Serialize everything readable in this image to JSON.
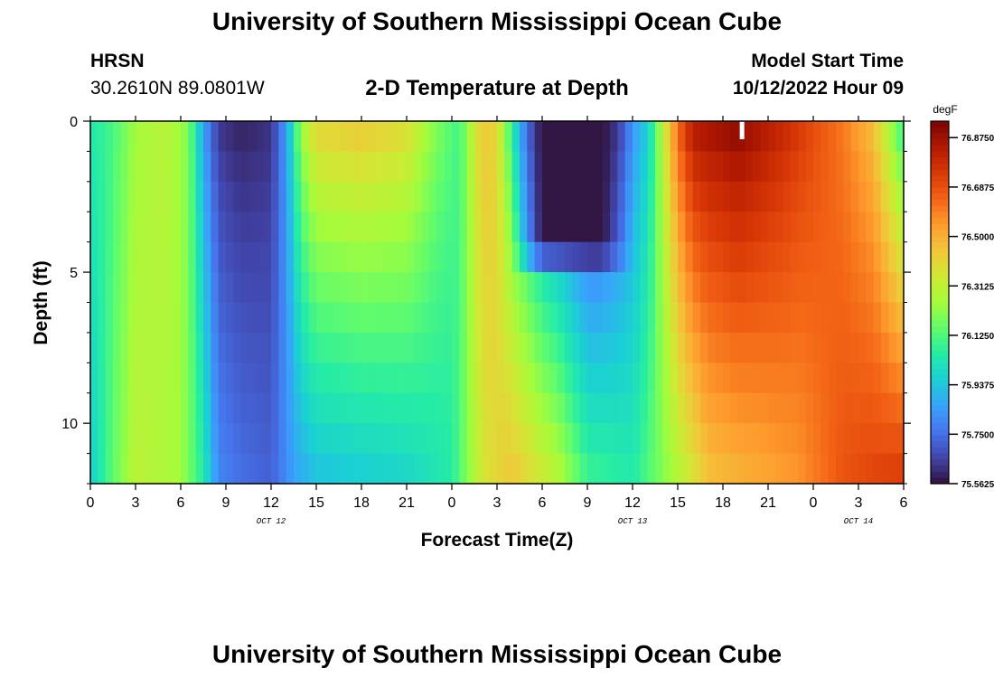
{
  "header": {
    "title": "University of Southern Mississippi Ocean Cube",
    "station": "HRSN",
    "coords": "30.2610N  89.0801W",
    "subtitle": "2-D Temperature at Depth",
    "model_start_label": "Model Start Time",
    "model_start_value": "10/12/2022 Hour 09"
  },
  "footer": {
    "title": "University of Southern Mississippi Ocean Cube"
  },
  "colors": {
    "colormap": [
      "#30123b",
      "#4145ab",
      "#4675ed",
      "#39a2fc",
      "#1bcfd4",
      "#24eca6",
      "#61fc6c",
      "#a4fc3b",
      "#d1e834",
      "#f3c63a",
      "#fe9b2d",
      "#f36315",
      "#d93806",
      "#b11901",
      "#7a0403"
    ]
  },
  "chart_data": {
    "type": "heatmap",
    "xlabel": "Forecast Time(Z)",
    "ylabel": "Depth (ft)",
    "x_tick_labels": [
      "0",
      "3",
      "6",
      "9",
      "12",
      "15",
      "18",
      "21",
      "0",
      "3",
      "6",
      "9",
      "12",
      "15",
      "18",
      "21",
      "0",
      "3",
      "6"
    ],
    "day_labels": [
      {
        "label": "OCT 12",
        "at_hour": 12
      },
      {
        "label": "OCT 13",
        "at_hour": 36
      },
      {
        "label": "OCT 14",
        "at_hour": 51
      }
    ],
    "xlim": [
      0,
      54
    ],
    "ylim": [
      0,
      12
    ],
    "y_axis_inverted": true,
    "y_tick_labels": [
      "0",
      "5",
      "10"
    ],
    "y_tick_values": [
      0,
      5,
      10
    ],
    "colorbar": {
      "unit": "degF",
      "min": 75.5625,
      "max": 76.9375,
      "tick_labels": [
        "76.8750",
        "76.6875",
        "76.5000",
        "76.3125",
        "76.1250",
        "75.9375",
        "75.7500",
        "75.5625"
      ],
      "tick_values": [
        76.875,
        76.6875,
        76.5,
        76.3125,
        76.125,
        75.9375,
        75.75,
        75.5625
      ]
    },
    "cells": {
      "x_step_hours": 0.5,
      "depth_levels": 12
    },
    "surface_profile_degF": [
      {
        "hour": 0,
        "value": 76.05
      },
      {
        "hour": 1,
        "value": 76.08
      },
      {
        "hour": 2,
        "value": 76.15
      },
      {
        "hour": 3,
        "value": 76.25
      },
      {
        "hour": 5,
        "value": 76.3
      },
      {
        "hour": 6.5,
        "value": 76.2
      },
      {
        "hour": 7.5,
        "value": 75.85
      },
      {
        "hour": 8.5,
        "value": 75.63
      },
      {
        "hour": 10,
        "value": 75.59
      },
      {
        "hour": 12,
        "value": 75.62
      },
      {
        "hour": 13,
        "value": 75.85
      },
      {
        "hour": 14,
        "value": 76.25
      },
      {
        "hour": 15,
        "value": 76.42
      },
      {
        "hour": 18,
        "value": 76.45
      },
      {
        "hour": 21,
        "value": 76.4
      },
      {
        "hour": 23,
        "value": 76.2
      },
      {
        "hour": 24.5,
        "value": 76.1
      },
      {
        "hour": 26,
        "value": 76.45
      },
      {
        "hour": 27,
        "value": 76.4
      },
      {
        "hour": 28,
        "value": 76.05
      },
      {
        "hour": 30,
        "value": 75.75
      },
      {
        "hour": 32,
        "value": 75.62
      },
      {
        "hour": 33.5,
        "value": 75.57
      },
      {
        "hour": 35,
        "value": 75.7
      },
      {
        "hour": 37,
        "value": 75.95
      },
      {
        "hour": 38,
        "value": 76.3
      },
      {
        "hour": 39,
        "value": 76.65
      },
      {
        "hour": 40,
        "value": 76.85
      },
      {
        "hour": 43,
        "value": 76.92
      },
      {
        "hour": 46,
        "value": 76.8
      },
      {
        "hour": 48,
        "value": 76.7
      },
      {
        "hour": 50,
        "value": 76.6
      },
      {
        "hour": 52,
        "value": 76.45
      },
      {
        "hour": 53,
        "value": 76.25
      },
      {
        "hour": 54,
        "value": 76.05
      }
    ],
    "bottom_profile_degF": [
      {
        "hour": 0,
        "value": 75.95
      },
      {
        "hour": 1.5,
        "value": 76.15
      },
      {
        "hour": 3,
        "value": 76.3
      },
      {
        "hour": 6,
        "value": 76.25
      },
      {
        "hour": 7.5,
        "value": 76.05
      },
      {
        "hour": 8.5,
        "value": 75.8
      },
      {
        "hour": 10,
        "value": 75.75
      },
      {
        "hour": 12,
        "value": 75.72
      },
      {
        "hour": 13.5,
        "value": 75.85
      },
      {
        "hour": 15,
        "value": 75.92
      },
      {
        "hour": 21,
        "value": 75.97
      },
      {
        "hour": 24,
        "value": 76.05
      },
      {
        "hour": 26,
        "value": 76.35
      },
      {
        "hour": 28,
        "value": 76.45
      },
      {
        "hour": 31,
        "value": 76.3
      },
      {
        "hour": 33,
        "value": 76.1
      },
      {
        "hour": 36,
        "value": 76.05
      },
      {
        "hour": 38,
        "value": 76.2
      },
      {
        "hour": 40,
        "value": 76.35
      },
      {
        "hour": 41,
        "value": 76.45
      },
      {
        "hour": 44,
        "value": 76.5
      },
      {
        "hour": 47,
        "value": 76.55
      },
      {
        "hour": 50,
        "value": 76.68
      },
      {
        "hour": 54,
        "value": 76.75
      }
    ],
    "cool_lens": {
      "start_hour": 28,
      "end_hour": 36,
      "bottom_depth_ft": 5.5,
      "min_degF": 75.57
    },
    "missing_cells": [
      {
        "hour": 43,
        "depth_ft": 0
      }
    ]
  }
}
